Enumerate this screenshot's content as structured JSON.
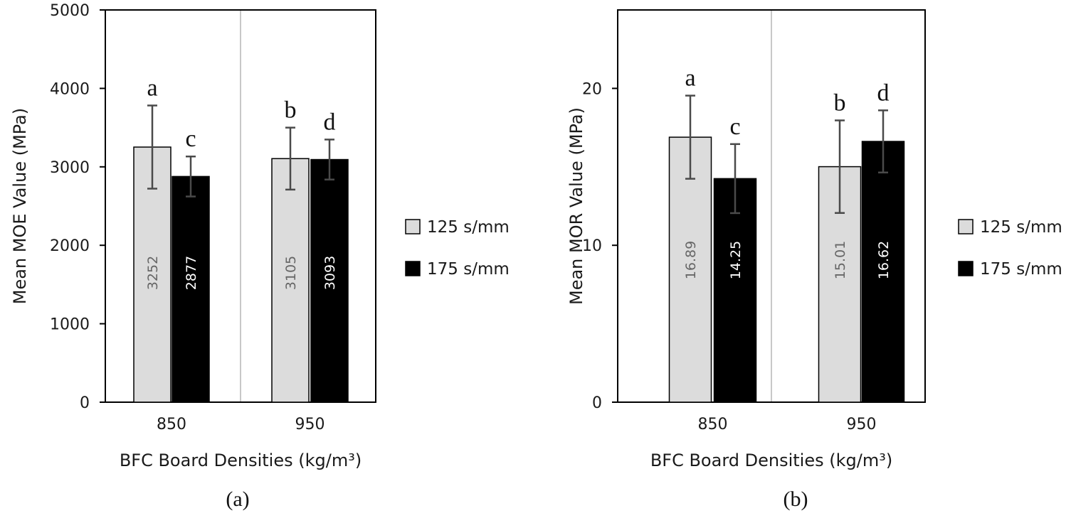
{
  "colors": {
    "series_125": "#dcdcdc",
    "series_175": "#000000",
    "bar_stroke": "#000000",
    "error_bar": "#4a4a4a",
    "label_on_light": "#666666",
    "label_on_dark": "#ffffff",
    "separator": "#c8c8c8"
  },
  "chart_data": [
    {
      "type": "bar",
      "caption": "(a)",
      "xlabel": "BFC Board Densities (kg/m³)",
      "ylabel": "Mean MOE Value (MPa)",
      "ylim": [
        0,
        5000
      ],
      "yticks": [
        0,
        1000,
        2000,
        3000,
        4000,
        5000
      ],
      "ytick_labels": [
        "0",
        "1000",
        "2000",
        "3000",
        "4000",
        "5000"
      ],
      "categories": [
        "850",
        "950"
      ],
      "legend_position": "right",
      "series": [
        {
          "name": "125 s/mm",
          "values": [
            3252,
            3105
          ],
          "value_labels": [
            "3252",
            "3105"
          ],
          "error": [
            530,
            395
          ],
          "significance": [
            "a",
            "b"
          ]
        },
        {
          "name": "175 s/mm",
          "values": [
            2877,
            3093
          ],
          "value_labels": [
            "2877",
            "3093"
          ],
          "error": [
            255,
            255
          ],
          "significance": [
            "c",
            "d"
          ]
        }
      ]
    },
    {
      "type": "bar",
      "caption": "(b)",
      "xlabel": "BFC Board Densities (kg/m³)",
      "ylabel": "Mean MOR Value (MPa)",
      "ylim": [
        0,
        25
      ],
      "yticks": [
        0,
        10,
        20
      ],
      "ytick_labels": [
        "0",
        "10",
        "20"
      ],
      "categories": [
        "850",
        "950"
      ],
      "legend_position": "right",
      "series": [
        {
          "name": "125 s/mm",
          "values": [
            16.89,
            15.01
          ],
          "value_labels": [
            "16.89",
            "15.01"
          ],
          "error": [
            2.65,
            2.95
          ],
          "significance": [
            "a",
            "b"
          ]
        },
        {
          "name": "175 s/mm",
          "values": [
            14.25,
            16.62
          ],
          "value_labels": [
            "14.25",
            "16.62"
          ],
          "error": [
            2.2,
            1.98
          ],
          "significance": [
            "c",
            "d"
          ]
        }
      ]
    }
  ]
}
